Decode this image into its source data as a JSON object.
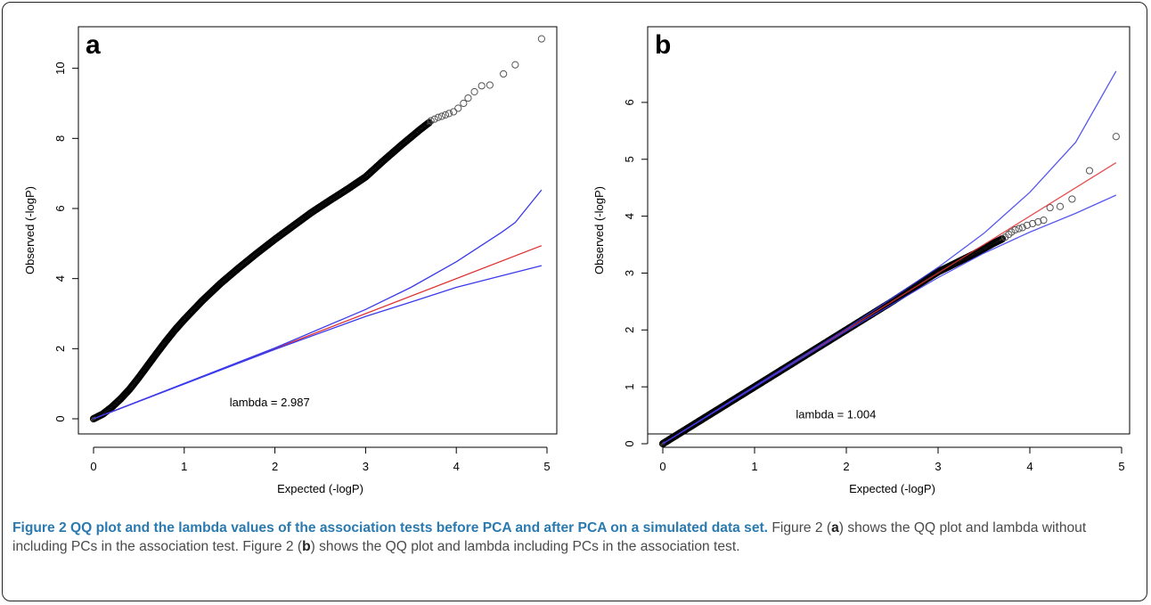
{
  "caption": {
    "title": "Figure 2 QQ plot and the lambda values of the association tests before PCA and after PCA on a simulated data set.",
    "sentence1_pre": "Figure 2 (",
    "panel_a": "a",
    "sentence1_post": ") shows the QQ plot and lambda without including PCs in the association test.",
    "sentence2_pre": "Figure 2 (",
    "panel_b": "b",
    "sentence2_post": ") shows the QQ plot and lambda including PCs in the association test."
  },
  "colors": {
    "points": "#000000",
    "expected_line": "#e03030",
    "confidence_band": "#3a3aee",
    "caption_title": "#2a7ab0"
  },
  "chart_data": [
    {
      "type": "scatter",
      "panel_label": "a",
      "xlabel": "Expected (-logP)",
      "ylabel": "Observed (-logP)",
      "xlim": [
        0,
        5
      ],
      "ylim": [
        0,
        11
      ],
      "xticks": [
        0,
        1,
        2,
        3,
        4,
        5
      ],
      "yticks": [
        0,
        2,
        4,
        6,
        8,
        10
      ],
      "annotation": "lambda = 2.987",
      "annotation_at": [
        1.5,
        0.35
      ],
      "grid": false,
      "series": [
        {
          "kind": "points",
          "curve": [
            [
              0,
              0
            ],
            [
              0.1,
              0.13
            ],
            [
              0.2,
              0.33
            ],
            [
              0.3,
              0.57
            ],
            [
              0.4,
              0.85
            ],
            [
              0.5,
              1.18
            ],
            [
              0.6,
              1.53
            ],
            [
              0.7,
              1.88
            ],
            [
              0.8,
              2.22
            ],
            [
              0.9,
              2.54
            ],
            [
              1.0,
              2.83
            ],
            [
              1.2,
              3.37
            ],
            [
              1.4,
              3.86
            ],
            [
              1.6,
              4.3
            ],
            [
              1.8,
              4.72
            ],
            [
              2.0,
              5.12
            ],
            [
              2.2,
              5.5
            ],
            [
              2.4,
              5.88
            ],
            [
              2.6,
              6.22
            ],
            [
              2.8,
              6.55
            ],
            [
              3.0,
              6.9
            ],
            [
              3.2,
              7.37
            ],
            [
              3.4,
              7.82
            ],
            [
              3.6,
              8.25
            ],
            [
              3.7,
              8.45
            ]
          ],
          "tail": [
            [
              3.72,
              8.5
            ],
            [
              3.76,
              8.55
            ],
            [
              3.8,
              8.6
            ],
            [
              3.84,
              8.63
            ],
            [
              3.88,
              8.67
            ],
            [
              3.92,
              8.71
            ],
            [
              3.97,
              8.76
            ],
            [
              4.02,
              8.86
            ],
            [
              4.08,
              9.0
            ],
            [
              4.13,
              9.15
            ],
            [
              4.2,
              9.33
            ],
            [
              4.28,
              9.5
            ],
            [
              4.37,
              9.52
            ],
            [
              4.52,
              9.84
            ],
            [
              4.65,
              10.1
            ],
            [
              4.94,
              10.84
            ]
          ]
        },
        {
          "kind": "line",
          "role": "expected",
          "points": [
            [
              0,
              0
            ],
            [
              4.94,
              4.94
            ]
          ]
        },
        {
          "kind": "line",
          "role": "upper",
          "points": [
            [
              0,
              0
            ],
            [
              2.0,
              2.02
            ],
            [
              3.0,
              3.12
            ],
            [
              3.5,
              3.75
            ],
            [
              4.0,
              4.48
            ],
            [
              4.5,
              5.32
            ],
            [
              4.65,
              5.6
            ],
            [
              4.94,
              6.53
            ]
          ]
        },
        {
          "kind": "line",
          "role": "lower",
          "points": [
            [
              0,
              0
            ],
            [
              2.0,
              1.98
            ],
            [
              3.0,
              2.92
            ],
            [
              3.5,
              3.33
            ],
            [
              4.0,
              3.75
            ],
            [
              4.5,
              4.08
            ],
            [
              4.94,
              4.37
            ]
          ]
        }
      ]
    },
    {
      "type": "scatter",
      "panel_label": "b",
      "xlabel": "Expected (-logP)",
      "ylabel": "Observed (-logP)",
      "xlim": [
        0,
        5
      ],
      "ylim": [
        0,
        6.5
      ],
      "xticks": [
        0,
        1,
        2,
        3,
        4,
        5
      ],
      "yticks": [
        0,
        1,
        2,
        3,
        4,
        5,
        6
      ],
      "annotation": "lambda = 1.004",
      "annotation_at": [
        1.45,
        0.45
      ],
      "grid": false,
      "series": [
        {
          "kind": "points",
          "curve": [
            [
              0,
              0
            ],
            [
              0.5,
              0.5
            ],
            [
              1.0,
              1.0
            ],
            [
              1.5,
              1.5
            ],
            [
              2.0,
              2.0
            ],
            [
              2.5,
              2.5
            ],
            [
              2.9,
              2.92
            ],
            [
              3.0,
              3.02
            ],
            [
              3.2,
              3.18
            ],
            [
              3.4,
              3.34
            ],
            [
              3.6,
              3.52
            ],
            [
              3.7,
              3.6
            ]
          ],
          "tail": [
            [
              3.73,
              3.63
            ],
            [
              3.77,
              3.68
            ],
            [
              3.8,
              3.72
            ],
            [
              3.84,
              3.76
            ],
            [
              3.88,
              3.78
            ],
            [
              3.92,
              3.8
            ],
            [
              3.97,
              3.84
            ],
            [
              4.03,
              3.87
            ],
            [
              4.09,
              3.9
            ],
            [
              4.15,
              3.93
            ],
            [
              4.22,
              4.15
            ],
            [
              4.33,
              4.17
            ],
            [
              4.46,
              4.3
            ],
            [
              4.65,
              4.8
            ],
            [
              4.94,
              5.4
            ]
          ]
        },
        {
          "kind": "line",
          "role": "expected",
          "points": [
            [
              0,
              0
            ],
            [
              4.94,
              4.94
            ]
          ]
        },
        {
          "kind": "line",
          "role": "upper",
          "points": [
            [
              0,
              0
            ],
            [
              2.0,
              2.02
            ],
            [
              3.0,
              3.1
            ],
            [
              3.5,
              3.7
            ],
            [
              4.0,
              4.42
            ],
            [
              4.5,
              5.3
            ],
            [
              4.94,
              6.55
            ]
          ]
        },
        {
          "kind": "line",
          "role": "lower",
          "points": [
            [
              0,
              0
            ],
            [
              2.0,
              1.98
            ],
            [
              3.0,
              2.92
            ],
            [
              3.5,
              3.35
            ],
            [
              4.0,
              3.72
            ],
            [
              4.5,
              4.05
            ],
            [
              4.94,
              4.37
            ]
          ]
        }
      ]
    }
  ]
}
